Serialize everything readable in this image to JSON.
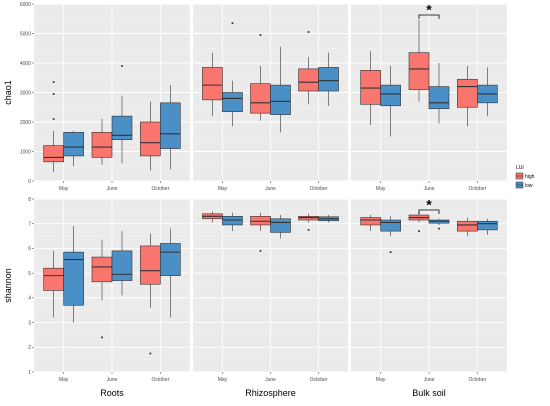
{
  "chart_data": {
    "type": "boxplot",
    "facets": [
      "Roots",
      "Rhizosphere",
      "Bulk soil"
    ],
    "x_categories": [
      "May",
      "June",
      "October"
    ],
    "legend": {
      "title": "LUI",
      "entries": [
        {
          "name": "high",
          "color": "#F8766D"
        },
        {
          "name": "low",
          "color": "#4A8FC6"
        }
      ],
      "placement": "right"
    },
    "panels": [
      {
        "ylabel": "chao1",
        "ylim": [
          0,
          6000
        ],
        "yticks": [
          0,
          1000,
          2000,
          3000,
          4000,
          5000,
          6000
        ],
        "significance": [
          {
            "facet": "Bulk soil",
            "month": "June",
            "label": "*"
          }
        ],
        "groups": [
          {
            "facet": "Roots",
            "month": "May",
            "series": "high",
            "min": 300,
            "q1": 650,
            "median": 800,
            "q3": 1200,
            "max": 1700,
            "outliers": [
              2100,
              2950,
              3350
            ]
          },
          {
            "facet": "Roots",
            "month": "May",
            "series": "low",
            "min": 500,
            "q1": 850,
            "median": 1150,
            "q3": 1650,
            "max": 1700,
            "outliers": []
          },
          {
            "facet": "Roots",
            "month": "June",
            "series": "high",
            "min": 550,
            "q1": 800,
            "median": 1150,
            "q3": 1650,
            "max": 2100,
            "outliers": []
          },
          {
            "facet": "Roots",
            "month": "June",
            "series": "low",
            "min": 600,
            "q1": 1400,
            "median": 1550,
            "q3": 2200,
            "max": 2900,
            "outliers": [
              3900
            ]
          },
          {
            "facet": "Roots",
            "month": "October",
            "series": "high",
            "min": 350,
            "q1": 850,
            "median": 1300,
            "q3": 2000,
            "max": 2700,
            "outliers": []
          },
          {
            "facet": "Roots",
            "month": "October",
            "series": "low",
            "min": 400,
            "q1": 1100,
            "median": 1600,
            "q3": 2650,
            "max": 3250,
            "outliers": []
          },
          {
            "facet": "Rhizosphere",
            "month": "May",
            "series": "high",
            "min": 2200,
            "q1": 2750,
            "median": 3250,
            "q3": 3850,
            "max": 4350,
            "outliers": []
          },
          {
            "facet": "Rhizosphere",
            "month": "May",
            "series": "low",
            "min": 1850,
            "q1": 2350,
            "median": 2800,
            "q3": 3000,
            "max": 3400,
            "outliers": [
              5350
            ]
          },
          {
            "facet": "Rhizosphere",
            "month": "June",
            "series": "high",
            "min": 2050,
            "q1": 2300,
            "median": 2650,
            "q3": 3300,
            "max": 3900,
            "outliers": [
              4950
            ]
          },
          {
            "facet": "Rhizosphere",
            "month": "June",
            "series": "low",
            "min": 1650,
            "q1": 2250,
            "median": 2700,
            "q3": 3250,
            "max": 4550,
            "outliers": []
          },
          {
            "facet": "Rhizosphere",
            "month": "October",
            "series": "high",
            "min": 2600,
            "q1": 3050,
            "median": 3350,
            "q3": 3800,
            "max": 4200,
            "outliers": [
              5050
            ]
          },
          {
            "facet": "Rhizosphere",
            "month": "October",
            "series": "low",
            "min": 2550,
            "q1": 3050,
            "median": 3400,
            "q3": 3850,
            "max": 4350,
            "outliers": []
          },
          {
            "facet": "Bulk soil",
            "month": "May",
            "series": "high",
            "min": 1900,
            "q1": 2600,
            "median": 3150,
            "q3": 3750,
            "max": 4400,
            "outliers": []
          },
          {
            "facet": "Bulk soil",
            "month": "May",
            "series": "low",
            "min": 1500,
            "q1": 2550,
            "median": 2950,
            "q3": 3250,
            "max": 3900,
            "outliers": []
          },
          {
            "facet": "Bulk soil",
            "month": "June",
            "series": "high",
            "min": 2700,
            "q1": 3100,
            "median": 3800,
            "q3": 4350,
            "max": 5450,
            "outliers": []
          },
          {
            "facet": "Bulk soil",
            "month": "June",
            "series": "low",
            "min": 1950,
            "q1": 2450,
            "median": 2650,
            "q3": 3200,
            "max": 4000,
            "outliers": []
          },
          {
            "facet": "Bulk soil",
            "month": "October",
            "series": "high",
            "min": 1850,
            "q1": 2500,
            "median": 3200,
            "q3": 3450,
            "max": 3900,
            "outliers": []
          },
          {
            "facet": "Bulk soil",
            "month": "October",
            "series": "low",
            "min": 2200,
            "q1": 2650,
            "median": 2950,
            "q3": 3250,
            "max": 3850,
            "outliers": []
          }
        ]
      },
      {
        "ylabel": "shannon",
        "ylim": [
          1,
          8
        ],
        "yticks": [
          1,
          2,
          3,
          4,
          5,
          6,
          7,
          8
        ],
        "significance": [
          {
            "facet": "Bulk soil",
            "month": "June",
            "label": "*"
          }
        ],
        "groups": [
          {
            "facet": "Roots",
            "month": "May",
            "series": "high",
            "min": 3.2,
            "q1": 4.3,
            "median": 4.9,
            "q3": 5.2,
            "max": 5.9,
            "outliers": []
          },
          {
            "facet": "Roots",
            "month": "May",
            "series": "low",
            "min": 3.0,
            "q1": 3.7,
            "median": 5.55,
            "q3": 5.85,
            "max": 6.9,
            "outliers": []
          },
          {
            "facet": "Roots",
            "month": "June",
            "series": "high",
            "min": 3.9,
            "q1": 4.65,
            "median": 5.25,
            "q3": 5.65,
            "max": 6.35,
            "outliers": [
              2.4
            ]
          },
          {
            "facet": "Roots",
            "month": "June",
            "series": "low",
            "min": 4.1,
            "q1": 4.7,
            "median": 4.95,
            "q3": 5.9,
            "max": 6.7,
            "outliers": []
          },
          {
            "facet": "Roots",
            "month": "October",
            "series": "high",
            "min": 3.6,
            "q1": 4.55,
            "median": 5.1,
            "q3": 6.1,
            "max": 6.6,
            "outliers": [
              1.75
            ]
          },
          {
            "facet": "Roots",
            "month": "October",
            "series": "low",
            "min": 3.2,
            "q1": 4.9,
            "median": 5.85,
            "q3": 6.2,
            "max": 6.8,
            "outliers": []
          },
          {
            "facet": "Rhizosphere",
            "month": "May",
            "series": "high",
            "min": 7.05,
            "q1": 7.2,
            "median": 7.3,
            "q3": 7.4,
            "max": 7.5,
            "outliers": []
          },
          {
            "facet": "Rhizosphere",
            "month": "May",
            "series": "low",
            "min": 6.7,
            "q1": 6.95,
            "median": 7.15,
            "q3": 7.3,
            "max": 7.45,
            "outliers": []
          },
          {
            "facet": "Rhizosphere",
            "month": "June",
            "series": "high",
            "min": 6.7,
            "q1": 6.95,
            "median": 7.1,
            "q3": 7.3,
            "max": 7.45,
            "outliers": [
              5.9
            ]
          },
          {
            "facet": "Rhizosphere",
            "month": "June",
            "series": "low",
            "min": 6.4,
            "q1": 6.65,
            "median": 7.05,
            "q3": 7.2,
            "max": 7.35,
            "outliers": []
          },
          {
            "facet": "Rhizosphere",
            "month": "October",
            "series": "high",
            "min": 7.05,
            "q1": 7.15,
            "median": 7.25,
            "q3": 7.3,
            "max": 7.4,
            "outliers": [
              6.75
            ]
          },
          {
            "facet": "Rhizosphere",
            "month": "October",
            "series": "low",
            "min": 7.05,
            "q1": 7.12,
            "median": 7.2,
            "q3": 7.28,
            "max": 7.35,
            "outliers": []
          },
          {
            "facet": "Bulk soil",
            "month": "May",
            "series": "high",
            "min": 6.7,
            "q1": 6.95,
            "median": 7.15,
            "q3": 7.25,
            "max": 7.35,
            "outliers": []
          },
          {
            "facet": "Bulk soil",
            "month": "May",
            "series": "low",
            "min": 6.5,
            "q1": 6.7,
            "median": 7.05,
            "q3": 7.15,
            "max": 7.3,
            "outliers": [
              5.85
            ]
          },
          {
            "facet": "Bulk soil",
            "month": "June",
            "series": "high",
            "min": 7.05,
            "q1": 7.15,
            "median": 7.25,
            "q3": 7.35,
            "max": 7.45,
            "outliers": [
              6.7
            ]
          },
          {
            "facet": "Bulk soil",
            "month": "June",
            "series": "low",
            "min": 6.95,
            "q1": 7.02,
            "median": 7.1,
            "q3": 7.15,
            "max": 7.2,
            "outliers": [
              6.8
            ]
          },
          {
            "facet": "Bulk soil",
            "month": "October",
            "series": "high",
            "min": 6.5,
            "q1": 6.7,
            "median": 6.95,
            "q3": 7.1,
            "max": 7.25,
            "outliers": []
          },
          {
            "facet": "Bulk soil",
            "month": "October",
            "series": "low",
            "min": 6.55,
            "q1": 6.75,
            "median": 7.0,
            "q3": 7.1,
            "max": 7.2,
            "outliers": []
          }
        ]
      }
    ]
  }
}
